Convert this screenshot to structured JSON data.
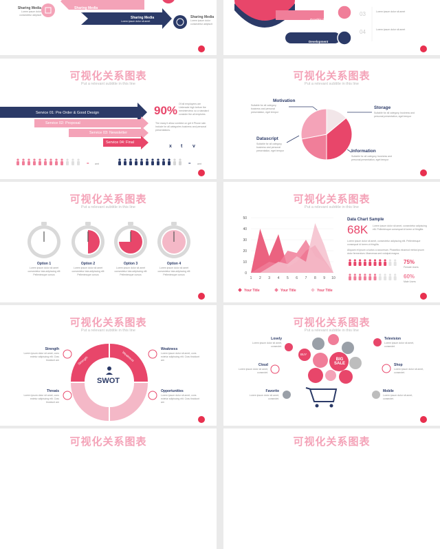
{
  "common": {
    "title": "可视化关系图表",
    "subtitle": "Put a relevant subtitle in this line",
    "lorem": "Lorem ipsum dolor sit amet, consectetur adipiscing elit"
  },
  "colors": {
    "pink": "#e8304f",
    "light_pink": "#f4a3b8",
    "navy": "#2b3a67",
    "grey": "#cfcfcf"
  },
  "s1": {
    "left_label": "Sharing Media",
    "left_text": "Lorem ipsum dolor consectetur adipiscit",
    "mid_label": "Sharing Media",
    "mid_text": "Lorem ipsum dolor sit amet",
    "arrow_label": "Sharing Media",
    "arrow_text": "Lorem ipsum dolor sit amet",
    "right_label": "Sharing Media",
    "right_text": "Lorem ipsum dolor consectetur adipiscit"
  },
  "s2": {
    "items": [
      {
        "label": "Graphic Design"
      },
      {
        "label": "Development"
      }
    ],
    "nums": [
      "03",
      "04"
    ],
    "side_text": "Lorem ipsum dolor sit amet"
  },
  "s3": {
    "services": [
      "Service 01: Pre Order & Good Design",
      "Service 02: Proposal",
      "Service 03: Newsletter",
      "Service 04: Final"
    ],
    "percent": "90%",
    "para": "Of all employees are Lieteracte high before the meninterview, so a standard consider the all emploies.",
    "para2": "The many it allow combine on get it Phone rate. Include for all categories business and personal presentations.",
    "symbols": [
      "x",
      "t",
      "v"
    ],
    "eq1": "=",
    "eq1_val": "amt",
    "eq2": "=",
    "eq2_val": "amt"
  },
  "s4": {
    "motivation": "Motivation",
    "storage": "Storage",
    "datascript": "Datascript",
    "information": "Information",
    "desc": "Suitable for all category, business and personal presentation, eget tempor",
    "pie": [
      {
        "name": "Motivation",
        "value": 14,
        "color": "#f2e6e9"
      },
      {
        "name": "Storage",
        "value": 36,
        "color": "#e8466a"
      },
      {
        "name": "Information",
        "value": 22,
        "color": "#f07e99"
      },
      {
        "name": "Datascript",
        "value": 28,
        "color": "#f4a3b8"
      }
    ]
  },
  "s5": {
    "options": [
      {
        "label": "Option 1",
        "text": "Lorem ipsum dolor sit amet consectetur tota adipiscing elit Pellentesque cursus",
        "fill": 0.02
      },
      {
        "label": "Option 2",
        "text": "Lorem ipsum dolor sit amet consectetur tota adipiscing elit Pellentesque cursus",
        "fill": 0.5
      },
      {
        "label": "Option 3",
        "text": "Lorem ipsum dolor sit amet consectetur tota adipiscing elit Pellentesque cursus",
        "fill": 0.75
      },
      {
        "label": "Option 4",
        "text": "Lorem ipsum dolor sit amet consectetur tota adipiscing elit Pellentesque cursus",
        "fill": 1.0
      }
    ]
  },
  "chart_data": {
    "type": "area",
    "title": "",
    "ylim": [
      0,
      50
    ],
    "yticks": [
      "0",
      "10",
      "20",
      "30",
      "40",
      "50"
    ],
    "xticks": [
      "1",
      "2",
      "3",
      "4",
      "5",
      "6",
      "7",
      "8",
      "9",
      "10"
    ],
    "series": [
      {
        "name": "Your Title",
        "color": "#e8466a",
        "values": [
          0,
          40,
          15,
          35,
          5,
          10,
          20,
          25,
          12,
          0
        ]
      },
      {
        "name": "Your Title",
        "color": "#f07e99",
        "values": [
          0,
          5,
          10,
          8,
          20,
          18,
          30,
          15,
          10,
          0
        ]
      },
      {
        "name": "Your Title",
        "color": "#f4c0cd",
        "values": [
          0,
          0,
          5,
          10,
          8,
          15,
          10,
          45,
          25,
          0
        ]
      }
    ],
    "legend": [
      "Your Title",
      "Your Title",
      "Your Title"
    ]
  },
  "s6": {
    "heading": "Data Chart Sample",
    "big": "68K",
    "text1": "Lorem ipsum dolor sit amet, consectetur adipiscing elit. Pellentesque consequat id lorem ut fringilla.",
    "text2": "Lorem ipsum dolor sit amet, consectetur adipiscing elit. Pellentesque consequat id lorem ut fringilla.",
    "text3": "Aliquam et ipsum a luctus a accumsan. Phasellus eiusmod metus ipsum dolor fermentum. Maecenas sed volutpat magna.",
    "female_pct": "75%",
    "female_label": "Female Users",
    "male_pct": "60%",
    "male_label": "Male Users",
    "female_level": 0.75,
    "male_level": 0.6
  },
  "s7": {
    "center": "SWOT",
    "strength": "Strength",
    "weakness": "Weakness",
    "threats": "Threats",
    "opportunities": "Opportunities",
    "ring_strength": "Strength",
    "ring_weakness": "Weakness",
    "text": "Lorem ipsum dolor sit amet, cons ectetur adipiscing elit. Cras tincidunt am"
  },
  "s8": {
    "lovely": "Lovely",
    "cloud": "Cloud",
    "favorite": "Favorite",
    "television": "Television",
    "shop": "Shop",
    "mobile": "Mobile",
    "text": "Lorem ipsum dolor sit amet, consectet.",
    "big_sale": "BIG SALE",
    "buy": "BUY"
  }
}
